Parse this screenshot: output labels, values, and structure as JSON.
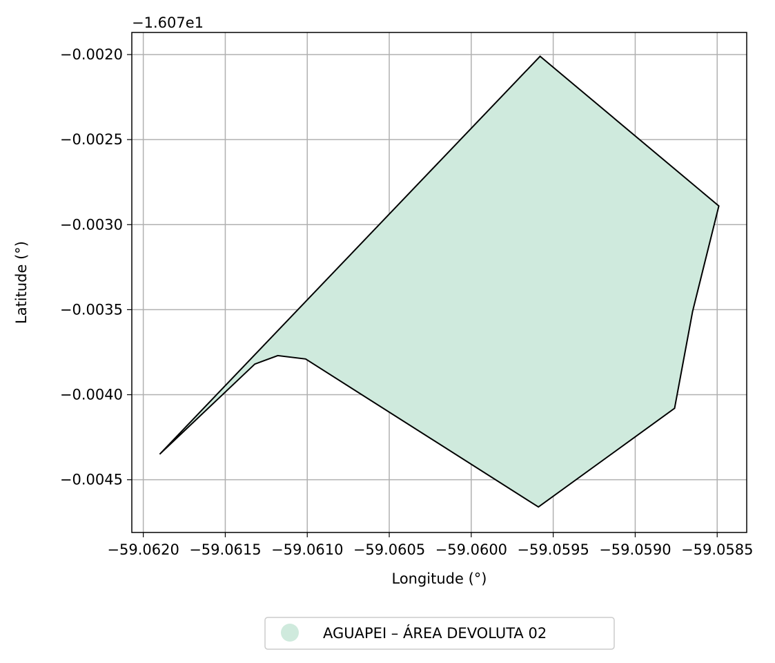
{
  "chart_data": {
    "type": "area",
    "xlabel": "Longitude (°)",
    "ylabel": "Latitude (°)",
    "y_offset_text": "−1.607e1",
    "xlim": [
      -59.06207,
      -59.05832
    ],
    "ylim": [
      -0.00481,
      -0.00187
    ],
    "x_ticks": [
      -59.062,
      -59.0615,
      -59.061,
      -59.0605,
      -59.06,
      -59.0595,
      -59.059,
      -59.0585
    ],
    "x_tick_labels": [
      "−59.0620",
      "−59.0615",
      "−59.0610",
      "−59.0605",
      "−59.0600",
      "−59.0595",
      "−59.0590",
      "−59.0585"
    ],
    "y_ticks": [
      -0.002,
      -0.0025,
      -0.003,
      -0.0035,
      -0.004,
      -0.0045
    ],
    "y_tick_labels": [
      "−0.0020",
      "−0.0025",
      "−0.0030",
      "−0.0035",
      "−0.0040",
      "−0.0045"
    ],
    "grid": true,
    "legend_position": "bottom-center",
    "series": [
      {
        "name": "AGUAPEI – ÁREA DEVOLUTA 02",
        "fill_color": "#cfeadd",
        "edge_color": "#000000",
        "x": [
          -59.0619,
          -59.05958,
          -59.05849,
          -59.05865,
          -59.05876,
          -59.05959,
          -59.06101,
          -59.06118,
          -59.06132,
          -59.0619
        ],
        "y": [
          -0.00435,
          -0.00201,
          -0.00289,
          -0.00351,
          -0.00408,
          -0.00466,
          -0.00379,
          -0.00377,
          -0.00382,
          -0.00435
        ]
      }
    ]
  }
}
